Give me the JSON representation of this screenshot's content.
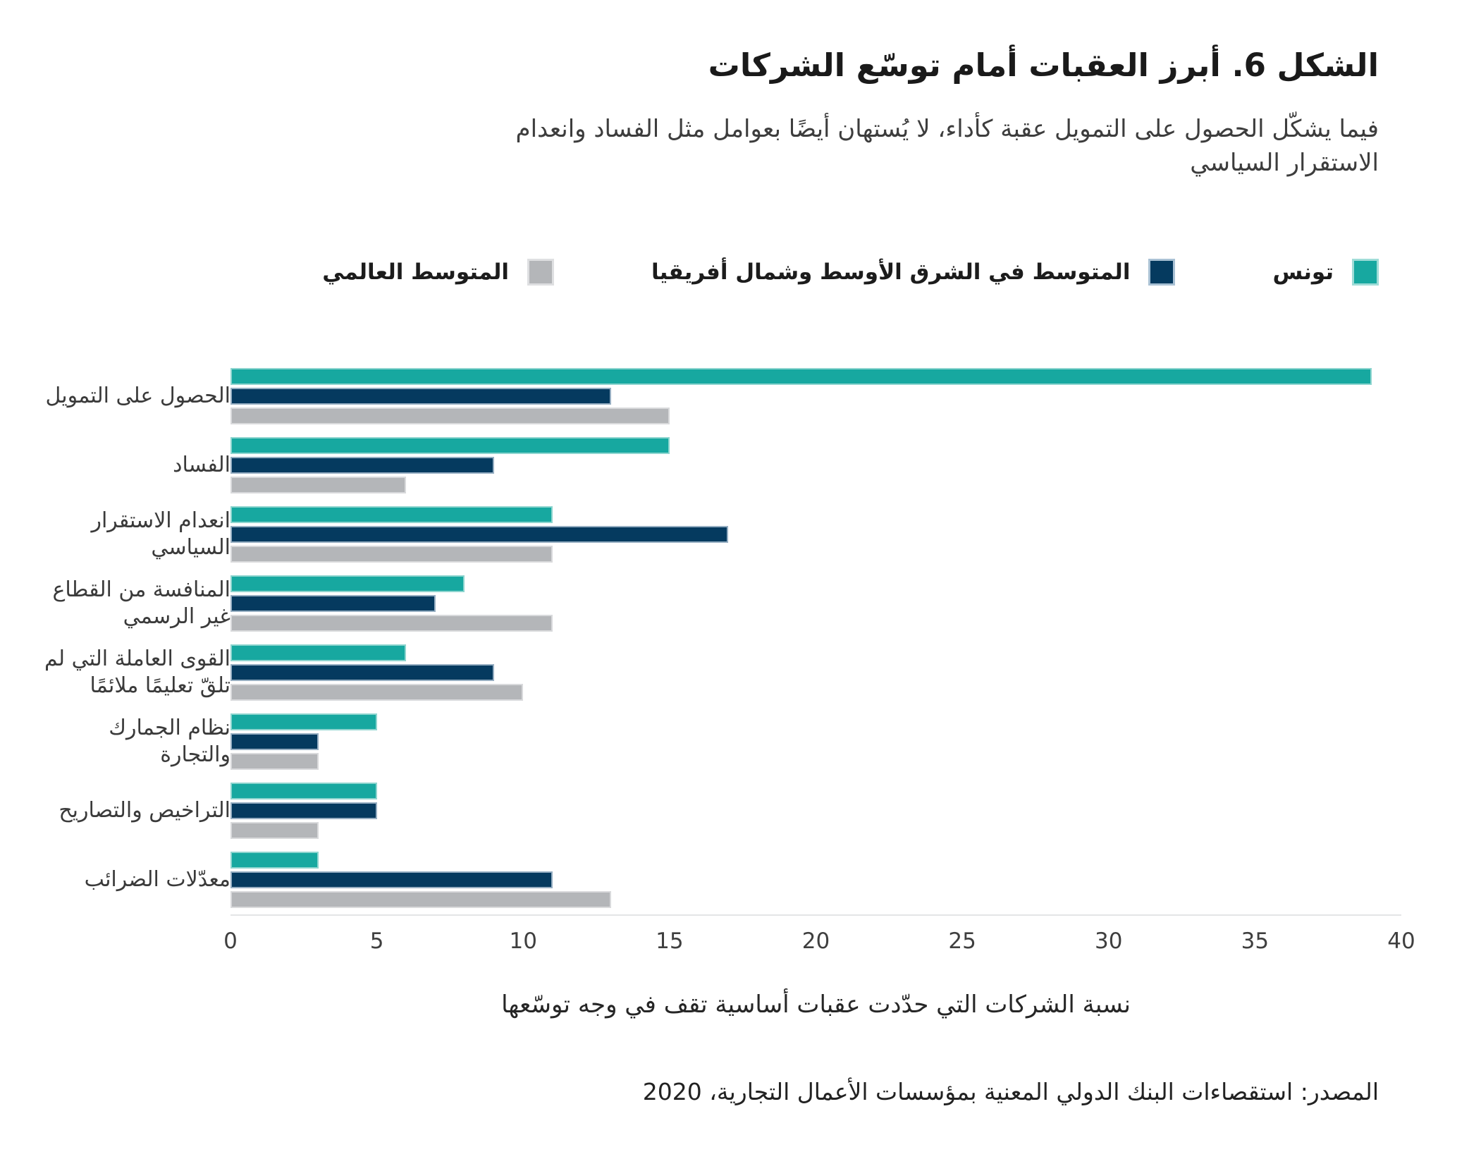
{
  "colors": {
    "tunisia": "#17a8a0",
    "mena": "#053a5f",
    "world": "#b4b6b9",
    "axis_line": "#e4e5e6",
    "title_text": "#1a1a1a"
  },
  "chart_data": {
    "type": "bar",
    "orientation": "horizontal",
    "title": "الشكل 6. أبرز العقبات أمام توسّع الشركات",
    "subtitle": "فيما يشكّل الحصول على التمويل عقبة كأداء، لا يُستهان أيضًا بعوامل مثل الفساد وانعدام\nالاستقرار السياسي",
    "source": "المصدر: استقصاءات البنك الدولي المعنية بمؤسسات الأعمال التجارية، 2020",
    "xlabel": "نسبة الشركات التي حدّدت عقبات أساسية تقف في وجه توسّعها",
    "xlim": [
      0,
      40
    ],
    "xticks": [
      0,
      5,
      10,
      15,
      20,
      25,
      30,
      35,
      40
    ],
    "grid": false,
    "legend_position": "top-right",
    "categories": [
      "الحصول على التمويل",
      "الفساد",
      "انعدام الاستقرار\nالسياسي",
      "المنافسة من القطاع\nغير الرسمي",
      "القوى العاملة التي لم\nتلقّ تعليمًا ملائمًا",
      "نظام الجمارك والتجارة",
      "التراخيص والتصاريح",
      "معدّلات الضرائب"
    ],
    "series": [
      {
        "key": "tunisia",
        "name": "تونس",
        "values": [
          39,
          15,
          11,
          8,
          6,
          5,
          5,
          3
        ]
      },
      {
        "key": "mena",
        "name": "المتوسط في الشرق الأوسط وشمال أفريقيا",
        "values": [
          13,
          9,
          17,
          7,
          9,
          3,
          5,
          11
        ]
      },
      {
        "key": "world",
        "name": "المتوسط العالمي",
        "values": [
          15,
          6,
          11,
          11,
          10,
          3,
          3,
          13
        ]
      }
    ]
  }
}
